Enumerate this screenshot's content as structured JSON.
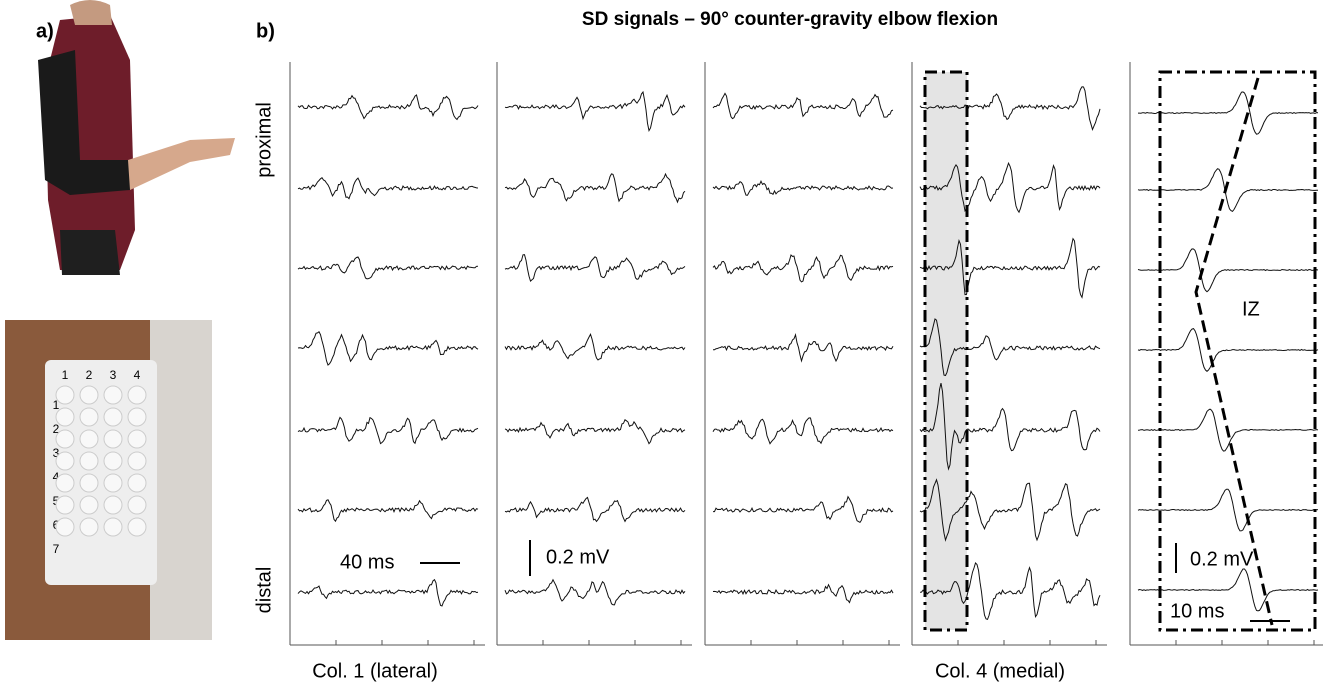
{
  "panel_a": {
    "label": "a)",
    "electrode_columns": [
      "1",
      "2",
      "3",
      "4"
    ],
    "electrode_rows": [
      "1",
      "2",
      "3",
      "4",
      "5",
      "6",
      "7"
    ]
  },
  "panel_b": {
    "label": "b)",
    "title": "SD signals – 90° counter-gravity elbow flexion",
    "proximal": "proximal",
    "distal": "distal",
    "time_scale": "40 ms",
    "voltage_scale": "0.2 mV",
    "col_first": "Col. 1 (lateral)",
    "col_last": "Col. 4 (medial)",
    "zoom": {
      "voltage_scale": "0.2 mV",
      "time_scale": "10 ms",
      "zone": "IZ"
    }
  }
}
